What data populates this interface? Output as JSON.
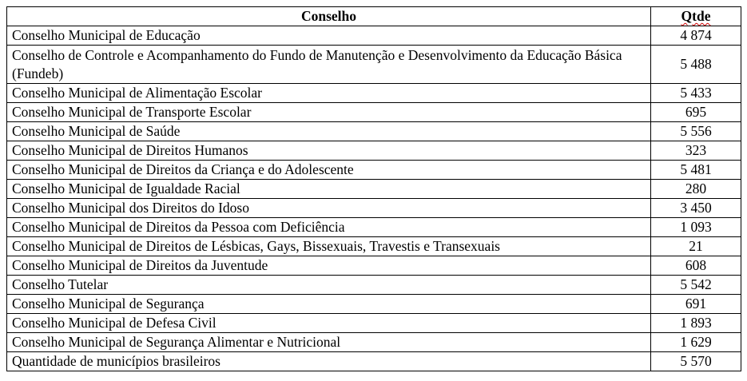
{
  "table": {
    "headers": {
      "name": "Conselho",
      "qty": "Qtde"
    },
    "rows": [
      {
        "name": "Conselho Municipal de Educação",
        "qty": "4 874"
      },
      {
        "name": "Conselho de Controle e Acompanhamento do Fundo de Manutenção e Desenvolvimento da Educação Básica (Fundeb)",
        "qty": "5 488"
      },
      {
        "name": "Conselho Municipal de Alimentação Escolar",
        "qty": "5 433"
      },
      {
        "name": "Conselho Municipal de Transporte Escolar",
        "qty": "695"
      },
      {
        "name": "Conselho Municipal de Saúde",
        "qty": "5 556"
      },
      {
        "name": "Conselho Municipal de Direitos Humanos",
        "qty": "323"
      },
      {
        "name": "Conselho Municipal de Direitos da Criança e do Adolescente",
        "qty": "5 481"
      },
      {
        "name": "Conselho Municipal de Igualdade Racial",
        "qty": "280"
      },
      {
        "name": "Conselho Municipal dos Direitos do Idoso",
        "qty": "3 450"
      },
      {
        "name": "Conselho Municipal de Direitos da Pessoa com Deficiência",
        "qty": "1 093"
      },
      {
        "name": "Conselho Municipal de Direitos de Lésbicas, Gays, Bissexuais, Travestis e Transexuais",
        "qty": "21"
      },
      {
        "name": "Conselho Municipal de Direitos da Juventude",
        "qty": "608"
      },
      {
        "name": "Conselho Tutelar",
        "qty": "5 542"
      },
      {
        "name": "Conselho Municipal de Segurança",
        "qty": "691"
      },
      {
        "name": "Conselho Municipal de Defesa Civil",
        "qty": "1 893"
      },
      {
        "name": "Conselho Municipal de Segurança Alimentar e Nutricional",
        "qty": "1 629"
      },
      {
        "name": "Quantidade de municípios brasileiros",
        "qty": "5 570"
      }
    ]
  }
}
